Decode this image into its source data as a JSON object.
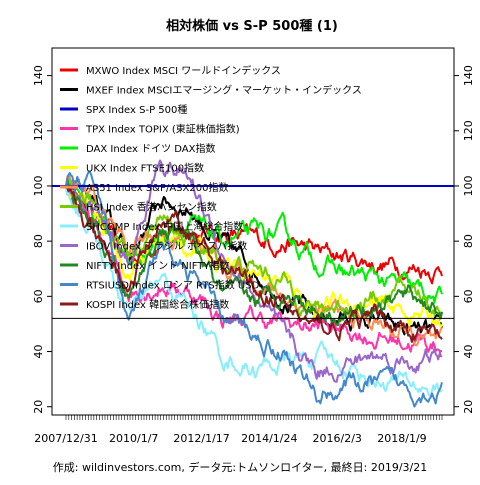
{
  "chart_data": {
    "type": "line",
    "title": "相対株価 vs S-P 500種 (1)",
    "xlabel": "",
    "ylabel": "",
    "x_tick_labels": [
      "2007/12/31",
      "2010/1/7",
      "2012/1/17",
      "2014/1/24",
      "2016/2/3",
      "2018/1/9"
    ],
    "x_range": [
      "2007/12/31",
      "2019/3/21"
    ],
    "ylim": [
      17,
      150
    ],
    "y_ticks": [
      20,
      40,
      60,
      80,
      100,
      120,
      140
    ],
    "grid": false,
    "legend_position": "top-left",
    "reference_lines": [
      {
        "name": "SPX Index S-P 500種",
        "value": 100,
        "color": "#0000cc"
      },
      {
        "value": 52,
        "color": "#000000"
      }
    ],
    "series": [
      {
        "name": "MXWO Index MSCI ワールドインデックス",
        "color": "#ee0000",
        "values": [
          100,
          88,
          72,
          82,
          84,
          83,
          80,
          80,
          76,
          74,
          72,
          71,
          70
        ]
      },
      {
        "name": "MXEF Index MSCIエマージング・マーケット・インデックス",
        "color": "#000000",
        "values": [
          100,
          94,
          74,
          95,
          92,
          78,
          70,
          60,
          52,
          52,
          50,
          47,
          45
        ]
      },
      {
        "name": "TPX Index TOPIX (東証株価指数)",
        "color": "#ff33aa",
        "values": [
          100,
          82,
          62,
          65,
          62,
          52,
          52,
          50,
          49,
          48,
          45,
          44,
          42
        ]
      },
      {
        "name": "DAX Index ドイツ DAX指数",
        "color": "#00ee00",
        "values": [
          100,
          90,
          72,
          82,
          85,
          80,
          82,
          82,
          73,
          68,
          66,
          62,
          58
        ]
      },
      {
        "name": "UKX Index FTSE100指数",
        "color": "#ffff00",
        "values": [
          100,
          88,
          70,
          80,
          78,
          74,
          70,
          65,
          56,
          58,
          56,
          54,
          52
        ]
      },
      {
        "name": "AS51 Index S&P/ASX200指数",
        "color": "#ff8c50",
        "values": [
          100,
          94,
          78,
          84,
          80,
          72,
          66,
          60,
          55,
          52,
          50,
          45,
          41
        ]
      },
      {
        "name": "HSI Index 香港ハンセン指数",
        "color": "#77cc00",
        "values": [
          100,
          92,
          76,
          88,
          80,
          72,
          70,
          65,
          55,
          57,
          60,
          62,
          55
        ]
      },
      {
        "name": "SHCOMP Index 中国上海総合指数",
        "color": "#88eeff",
        "values": [
          100,
          80,
          52,
          65,
          56,
          38,
          34,
          36,
          38,
          34,
          30,
          28,
          26
        ]
      },
      {
        "name": "IBOV Index ブラジル ボベスパ指数",
        "color": "#9966cc",
        "values": [
          100,
          90,
          70,
          110,
          102,
          76,
          60,
          44,
          33,
          36,
          38,
          36,
          38
        ]
      },
      {
        "name": "NIFTY Index インド NIFTY指数",
        "color": "#228822",
        "values": [
          100,
          82,
          58,
          84,
          80,
          60,
          58,
          62,
          56,
          54,
          58,
          60,
          55
        ]
      },
      {
        "name": "RTSIUSD Index ロシア RTS指数 USD",
        "color": "#4488cc",
        "values": [
          100,
          100,
          50,
          75,
          68,
          52,
          46,
          40,
          24,
          28,
          28,
          26,
          27
        ]
      },
      {
        "name": "KOSPI Index 韓国総合株価指数",
        "color": "#8b1a1a",
        "values": [
          100,
          78,
          62,
          88,
          84,
          70,
          64,
          56,
          48,
          50,
          52,
          48,
          44
        ]
      }
    ]
  },
  "caption": "作成: wildinvestors.com, データ元:トムソンロイター, 最終日: 2019/3/21"
}
